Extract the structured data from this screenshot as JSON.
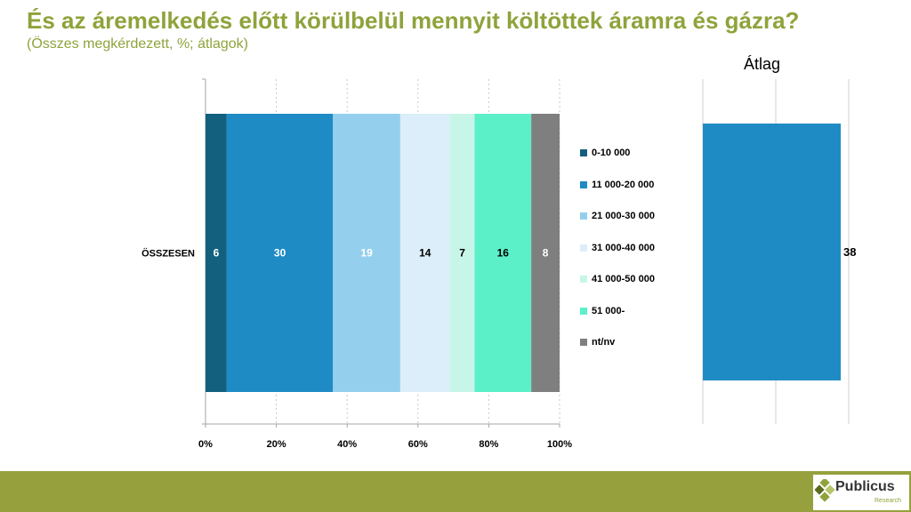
{
  "title": "És az áremelkedés előtt körülbelül mennyit költöttek áramra és gázra?",
  "subtitle": "(Összes megkérdezett, %; átlagok)",
  "chart_data": [
    {
      "type": "bar",
      "orientation": "horizontal-stacked",
      "categories": [
        "ÖSSZESEN"
      ],
      "series": [
        {
          "name": "0-10 000",
          "values": [
            6
          ],
          "color": "#13607e"
        },
        {
          "name": "11 000-20 000",
          "values": [
            30
          ],
          "color": "#1f8bc4"
        },
        {
          "name": "21 000-30 000",
          "values": [
            19
          ],
          "color": "#94d0ee"
        },
        {
          "name": "31 000-40 000",
          "values": [
            14
          ],
          "color": "#dbeef9"
        },
        {
          "name": "41 000-50 000",
          "values": [
            7
          ],
          "color": "#c7f6e8"
        },
        {
          "name": "51 000-",
          "values": [
            16
          ],
          "color": "#5cf0c9"
        },
        {
          "name": "nt/nv",
          "values": [
            8
          ],
          "color": "#7f7f7f"
        }
      ],
      "x_ticks": [
        "0%",
        "20%",
        "40%",
        "60%",
        "80%",
        "100%"
      ],
      "xlim": [
        0,
        100
      ],
      "grid": true,
      "legend": "right"
    },
    {
      "type": "bar",
      "orientation": "horizontal",
      "title": "Átlag",
      "categories": [
        "ÖSSZESEN"
      ],
      "values": [
        38
      ],
      "color": "#1f8bc4",
      "grid": true
    }
  ],
  "logo": {
    "name": "Publicus",
    "sub": "Research"
  }
}
